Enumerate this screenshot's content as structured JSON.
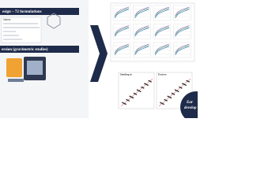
{
  "left_panel": {
    "design_header": "esign – 72 formulations",
    "table_header": "Values",
    "gravimetric_header": "ersion (gravimetric studies)"
  },
  "right_panel": {
    "scatter_1_title": "Swelling at",
    "scatter_2_title": "Erosion",
    "badge_line_1": "Ear",
    "badge_line_2": "develop"
  }
}
